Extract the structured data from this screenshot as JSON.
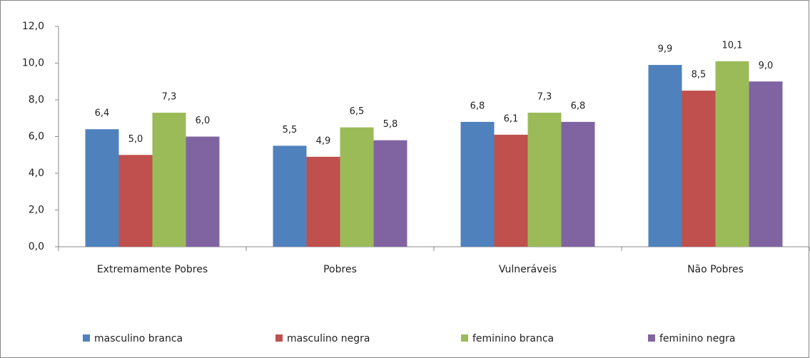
{
  "chart_data": {
    "type": "bar",
    "categories": [
      "Extremamente Pobres",
      "Pobres",
      "Vulneráveis",
      "Não Pobres"
    ],
    "series": [
      {
        "name": "masculino branca",
        "color": "#4f81bd",
        "values": [
          6.4,
          5.5,
          6.8,
          9.9
        ],
        "value_labels": [
          "6,4",
          "5,5",
          "6,8",
          "9,9"
        ]
      },
      {
        "name": "masculino negra",
        "color": "#c0504d",
        "values": [
          5.0,
          4.9,
          6.1,
          8.5
        ],
        "value_labels": [
          "5,0",
          "4,9",
          "6,1",
          "8,5"
        ]
      },
      {
        "name": "feminino branca",
        "color": "#9bbb59",
        "values": [
          7.3,
          6.5,
          7.3,
          10.1
        ],
        "value_labels": [
          "7,3",
          "6,5",
          "7,3",
          "10,1"
        ]
      },
      {
        "name": "feminino negra",
        "color": "#8064a2",
        "values": [
          6.0,
          5.8,
          6.8,
          9.0
        ],
        "value_labels": [
          "6,0",
          "5,8",
          "6,8",
          "9,0"
        ]
      }
    ],
    "ylim": [
      0,
      12
    ],
    "yticks": [
      {
        "value": 0,
        "label": "0,0"
      },
      {
        "value": 2,
        "label": "2,0"
      },
      {
        "value": 4,
        "label": "4,0"
      },
      {
        "value": 6,
        "label": "6,0"
      },
      {
        "value": 8,
        "label": "8,0"
      },
      {
        "value": 10,
        "label": "10,0"
      },
      {
        "value": 12,
        "label": "12,0"
      }
    ],
    "legend": "bottom"
  }
}
